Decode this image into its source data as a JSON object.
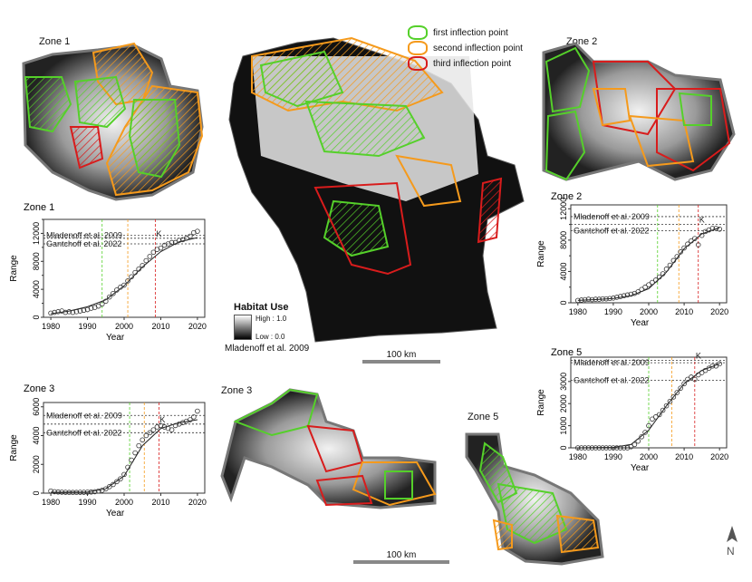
{
  "legend": {
    "items": [
      {
        "label": "first inflection point",
        "color": "#55d02a"
      },
      {
        "label": "second inflection point",
        "color": "#f59a1c"
      },
      {
        "label": "third inflection point",
        "color": "#d81c1c"
      }
    ]
  },
  "habitat": {
    "title": "Habitat Use",
    "high": "High : 1.0",
    "low": "Low : 0.0",
    "source": "Mladenoff et al. 2009"
  },
  "scale_main": "100 km",
  "scale_lower": "100 km",
  "map_zones": {
    "z1": "Zone 1",
    "z2": "Zone 2",
    "z3": "Zone 3",
    "z5": "Zone 5"
  },
  "ref_labels": {
    "mladenoff": "Mladenoff et al. 2009",
    "gantchoff": "Gantchoff et al. 2022",
    "k": "K"
  },
  "chart_data": [
    {
      "type": "scatter",
      "title": "Zone 1",
      "xlabel": "Year",
      "ylabel": "Range",
      "xlim": [
        1978,
        2022
      ],
      "ylim": [
        0,
        14000
      ],
      "xticks": [
        "1980",
        "1990",
        "2000",
        "2010",
        "2020"
      ],
      "yticks": [
        "0",
        "4000",
        "8000",
        "12000"
      ],
      "yticks2": [
        "2000",
        "6000",
        "10000",
        "14000"
      ],
      "x": [
        1980,
        1981,
        1982,
        1983,
        1984,
        1985,
        1986,
        1987,
        1988,
        1989,
        1990,
        1991,
        1992,
        1993,
        1994,
        1995,
        1996,
        1997,
        1998,
        1999,
        2000,
        2001,
        2002,
        2003,
        2004,
        2005,
        2006,
        2007,
        2008,
        2009,
        2010,
        2011,
        2012,
        2013,
        2014,
        2015,
        2016,
        2017,
        2018,
        2019,
        2020
      ],
      "y": [
        600,
        700,
        800,
        900,
        700,
        800,
        700,
        800,
        900,
        1000,
        1100,
        1300,
        1400,
        1600,
        1900,
        2300,
        2900,
        3400,
        3900,
        4300,
        4600,
        5200,
        5800,
        6400,
        6900,
        7400,
        8100,
        8700,
        9300,
        9700,
        9900,
        10300,
        10500,
        10700,
        10700,
        11000,
        11100,
        11300,
        11600,
        12100,
        12300
      ],
      "fit": [
        [
          1980,
          500
        ],
        [
          1985,
          900
        ],
        [
          1990,
          1500
        ],
        [
          1995,
          2500
        ],
        [
          2000,
          4500
        ],
        [
          2005,
          7200
        ],
        [
          2010,
          9400
        ],
        [
          2015,
          10800
        ],
        [
          2020,
          11400
        ]
      ],
      "mladenoff": 11700,
      "gantchoff": 10500,
      "k": 11300,
      "vlines": [
        1994,
        2001,
        2008.5
      ]
    },
    {
      "type": "scatter",
      "title": "Zone 2",
      "xlabel": "Year",
      "ylabel": "Range",
      "xlim": [
        1978,
        2022
      ],
      "ylim": [
        0,
        12500
      ],
      "xticks": [
        "1980",
        "1990",
        "2000",
        "2010",
        "2020"
      ],
      "yticks": [
        "0",
        "4000",
        "8000",
        "12000"
      ],
      "yticks2": [
        "2000",
        "6000",
        "10000"
      ],
      "x": [
        1980,
        1981,
        1982,
        1983,
        1984,
        1985,
        1986,
        1987,
        1988,
        1989,
        1990,
        1991,
        1992,
        1993,
        1994,
        1995,
        1996,
        1997,
        1998,
        1999,
        2000,
        2001,
        2002,
        2003,
        2004,
        2005,
        2006,
        2007,
        2008,
        2009,
        2010,
        2011,
        2012,
        2013,
        2014,
        2015,
        2016,
        2017,
        2018,
        2019,
        2020
      ],
      "y": [
        300,
        350,
        400,
        450,
        400,
        450,
        450,
        500,
        500,
        550,
        600,
        700,
        800,
        900,
        1000,
        1100,
        1200,
        1400,
        1700,
        2000,
        2300,
        2600,
        2900,
        3300,
        3700,
        4300,
        4800,
        5400,
        5900,
        6500,
        7000,
        7500,
        7900,
        8200,
        7400,
        8600,
        9100,
        9300,
        9500,
        9500,
        9400
      ],
      "fit": [
        [
          1980,
          300
        ],
        [
          1985,
          400
        ],
        [
          1990,
          550
        ],
        [
          1995,
          900
        ],
        [
          2000,
          1800
        ],
        [
          2005,
          3900
        ],
        [
          2010,
          6900
        ],
        [
          2015,
          8800
        ],
        [
          2020,
          9600
        ]
      ],
      "mladenoff": 11000,
      "gantchoff": 9200,
      "k": 10000,
      "vlines": [
        2002.5,
        2008.5,
        2014
      ]
    },
    {
      "type": "scatter",
      "title": "Zone 3",
      "xlabel": "Year",
      "ylabel": "Range",
      "xlim": [
        1978,
        2022
      ],
      "ylim": [
        0,
        6300
      ],
      "xticks": [
        "1980",
        "1990",
        "2000",
        "2010",
        "2020"
      ],
      "yticks": [
        "0",
        "2000",
        "4000",
        "6000"
      ],
      "yticks2": [],
      "x": [
        1980,
        1981,
        1982,
        1983,
        1984,
        1985,
        1986,
        1987,
        1988,
        1989,
        1990,
        1991,
        1992,
        1993,
        1994,
        1995,
        1996,
        1997,
        1998,
        1999,
        2000,
        2001,
        2002,
        2003,
        2004,
        2005,
        2006,
        2007,
        2008,
        2009,
        2010,
        2011,
        2012,
        2013,
        2014,
        2015,
        2016,
        2017,
        2018,
        2019,
        2020
      ],
      "y": [
        150,
        100,
        80,
        70,
        60,
        50,
        50,
        50,
        60,
        60,
        70,
        80,
        100,
        150,
        200,
        300,
        450,
        600,
        800,
        1000,
        1300,
        1800,
        2300,
        2800,
        3300,
        3700,
        4000,
        4200,
        4400,
        4600,
        4700,
        4600,
        4500,
        4400,
        4700,
        4800,
        4900,
        5000,
        5100,
        5300,
        5700
      ],
      "fit": [
        [
          1980,
          60
        ],
        [
          1990,
          80
        ],
        [
          1995,
          300
        ],
        [
          2000,
          1200
        ],
        [
          2005,
          3300
        ],
        [
          2010,
          4500
        ],
        [
          2015,
          4900
        ],
        [
          2020,
          5100
        ]
      ],
      "mladenoff": 5400,
      "gantchoff": 4200,
      "k": 4800,
      "vlines": [
        2001.5,
        2005.5,
        2009.5
      ]
    },
    {
      "type": "scatter",
      "title": "Zone 5",
      "xlabel": "Year",
      "ylabel": "Range",
      "xlim": [
        1978,
        2022
      ],
      "ylim": [
        0,
        4100
      ],
      "xticks": [
        "1980",
        "1990",
        "2000",
        "2010",
        "2020"
      ],
      "yticks": [
        "0",
        "1000",
        "2000",
        "3000"
      ],
      "yticks2": [],
      "x": [
        1980,
        1981,
        1982,
        1983,
        1984,
        1985,
        1986,
        1987,
        1988,
        1989,
        1990,
        1991,
        1992,
        1993,
        1994,
        1995,
        1996,
        1997,
        1998,
        1999,
        2000,
        2001,
        2002,
        2003,
        2004,
        2005,
        2006,
        2007,
        2008,
        2009,
        2010,
        2011,
        2012,
        2013,
        2014,
        2015,
        2016,
        2017,
        2018,
        2019,
        2020
      ],
      "y": [
        0,
        0,
        0,
        0,
        0,
        0,
        0,
        0,
        0,
        0,
        0,
        0,
        0,
        0,
        0,
        50,
        150,
        300,
        500,
        700,
        1000,
        1300,
        1400,
        1500,
        1700,
        1900,
        2100,
        2300,
        2500,
        2700,
        2900,
        3100,
        3200,
        3100,
        3300,
        3400,
        3500,
        3600,
        3700,
        3700,
        3800
      ],
      "fit": [
        [
          1980,
          0
        ],
        [
          1990,
          20
        ],
        [
          1995,
          150
        ],
        [
          2000,
          800
        ],
        [
          2005,
          1900
        ],
        [
          2010,
          2900
        ],
        [
          2015,
          3500
        ],
        [
          2020,
          3800
        ]
      ],
      "mladenoff": 3850,
      "gantchoff": 3050,
      "k": 3950,
      "vlines": [
        2000,
        2006.5,
        2013
      ]
    }
  ]
}
